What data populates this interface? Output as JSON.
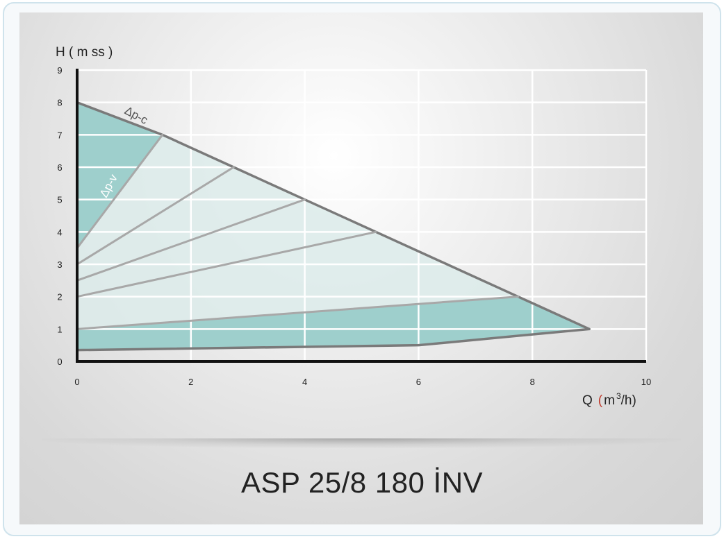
{
  "chart_data": {
    "type": "line",
    "title": "ASP 25/8 180 İNV",
    "xlabel": "Q (m³/h)",
    "ylabel": "H ( m ss )",
    "xlim": [
      0,
      10
    ],
    "ylim": [
      0,
      9
    ],
    "x_ticks": [
      "0",
      "2",
      "4",
      "6",
      "8",
      "10"
    ],
    "y_ticks": [
      "0",
      "1",
      "2",
      "3",
      "4",
      "5",
      "6",
      "7",
      "8",
      "9"
    ],
    "grid": true,
    "series": [
      {
        "name": "Δp-c",
        "x": [
          0,
          1.5,
          2.75,
          4.0,
          5.25,
          6.5,
          7.75,
          9.0
        ],
        "y": [
          8.0,
          7.0,
          6.0,
          5.0,
          4.0,
          3.0,
          2.0,
          1.0
        ]
      },
      {
        "name": "Δp-v",
        "x": [
          0,
          1.5
        ],
        "y": [
          3.5,
          7.0
        ]
      },
      {
        "name": "",
        "x": [
          0,
          2.75
        ],
        "y": [
          3.0,
          6.0
        ]
      },
      {
        "name": "",
        "x": [
          0,
          4.0
        ],
        "y": [
          2.5,
          5.0
        ]
      },
      {
        "name": "",
        "x": [
          0,
          5.25
        ],
        "y": [
          2.0,
          4.0
        ]
      },
      {
        "name": "",
        "x": [
          0,
          7.75
        ],
        "y": [
          1.0,
          2.0
        ]
      },
      {
        "name": "",
        "x": [
          0,
          6.0,
          9.0
        ],
        "y": [
          0.35,
          0.5,
          1.0
        ]
      }
    ]
  },
  "colors": {
    "teal_fill": "#9ecfcc",
    "light_fill": "#dcebea",
    "max_curve": "#7a7a7a",
    "inner_curves": "#a8a8a8",
    "grid": "#ffffff",
    "axis": "#111111",
    "q_paren": "#c0392b"
  },
  "labels": {
    "model": "ASP 25/8 180 İNV",
    "h_axis": "H ( m ss )",
    "q_axis_q": "Q",
    "q_axis_open": "(",
    "q_axis_unit": "m",
    "q_axis_sup": "3",
    "q_axis_rest": "/h)",
    "dp_c": "Δp-c",
    "dp_v": "Δp-v"
  }
}
